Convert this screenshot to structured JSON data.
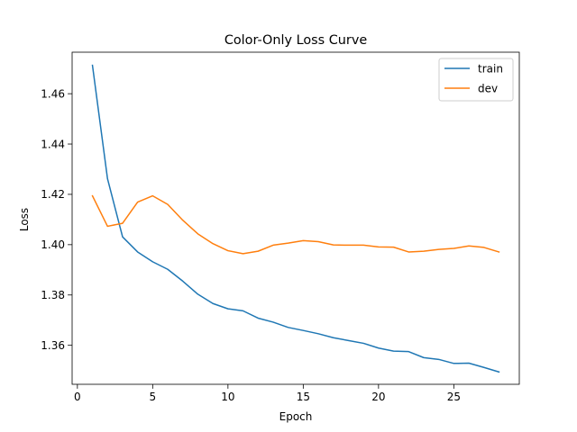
{
  "chart_data": {
    "type": "line",
    "title": "Color-Only Loss Curve",
    "xlabel": "Epoch",
    "ylabel": "Loss",
    "xlim": [
      -0.35,
      29.35
    ],
    "ylim": [
      1.3445,
      1.4765
    ],
    "xticks": [
      0,
      5,
      10,
      15,
      20,
      25
    ],
    "yticks": [
      1.36,
      1.38,
      1.4,
      1.42,
      1.44,
      1.46
    ],
    "ytick_labels": [
      "1.36",
      "1.38",
      "1.40",
      "1.42",
      "1.44",
      "1.46"
    ],
    "grid": false,
    "legend_position": "top-right",
    "x": [
      1,
      2,
      3,
      4,
      5,
      6,
      7,
      8,
      9,
      10,
      11,
      12,
      13,
      14,
      15,
      16,
      17,
      18,
      19,
      20,
      21,
      22,
      23,
      24,
      25,
      26,
      27,
      28
    ],
    "series": [
      {
        "name": "train",
        "color": "#1f77b4",
        "values": [
          1.4713,
          1.4262,
          1.4031,
          1.3971,
          1.3932,
          1.3902,
          1.3855,
          1.3803,
          1.3766,
          1.3745,
          1.3737,
          1.3708,
          1.3692,
          1.3671,
          1.3659,
          1.3646,
          1.363,
          1.3619,
          1.3608,
          1.3589,
          1.3577,
          1.3575,
          1.3551,
          1.3544,
          1.3528,
          1.3529,
          1.3512,
          1.3494
        ]
      },
      {
        "name": "dev",
        "color": "#ff7f0e",
        "values": [
          1.4194,
          1.4073,
          1.4085,
          1.4169,
          1.4194,
          1.416,
          1.4097,
          1.4043,
          1.4004,
          1.3976,
          1.3964,
          1.3974,
          1.3998,
          1.4006,
          1.4016,
          1.4012,
          1.3999,
          1.3998,
          1.3998,
          1.3991,
          1.399,
          1.3971,
          1.3974,
          1.3981,
          1.3985,
          1.3995,
          1.3989,
          1.3971
        ]
      }
    ]
  }
}
